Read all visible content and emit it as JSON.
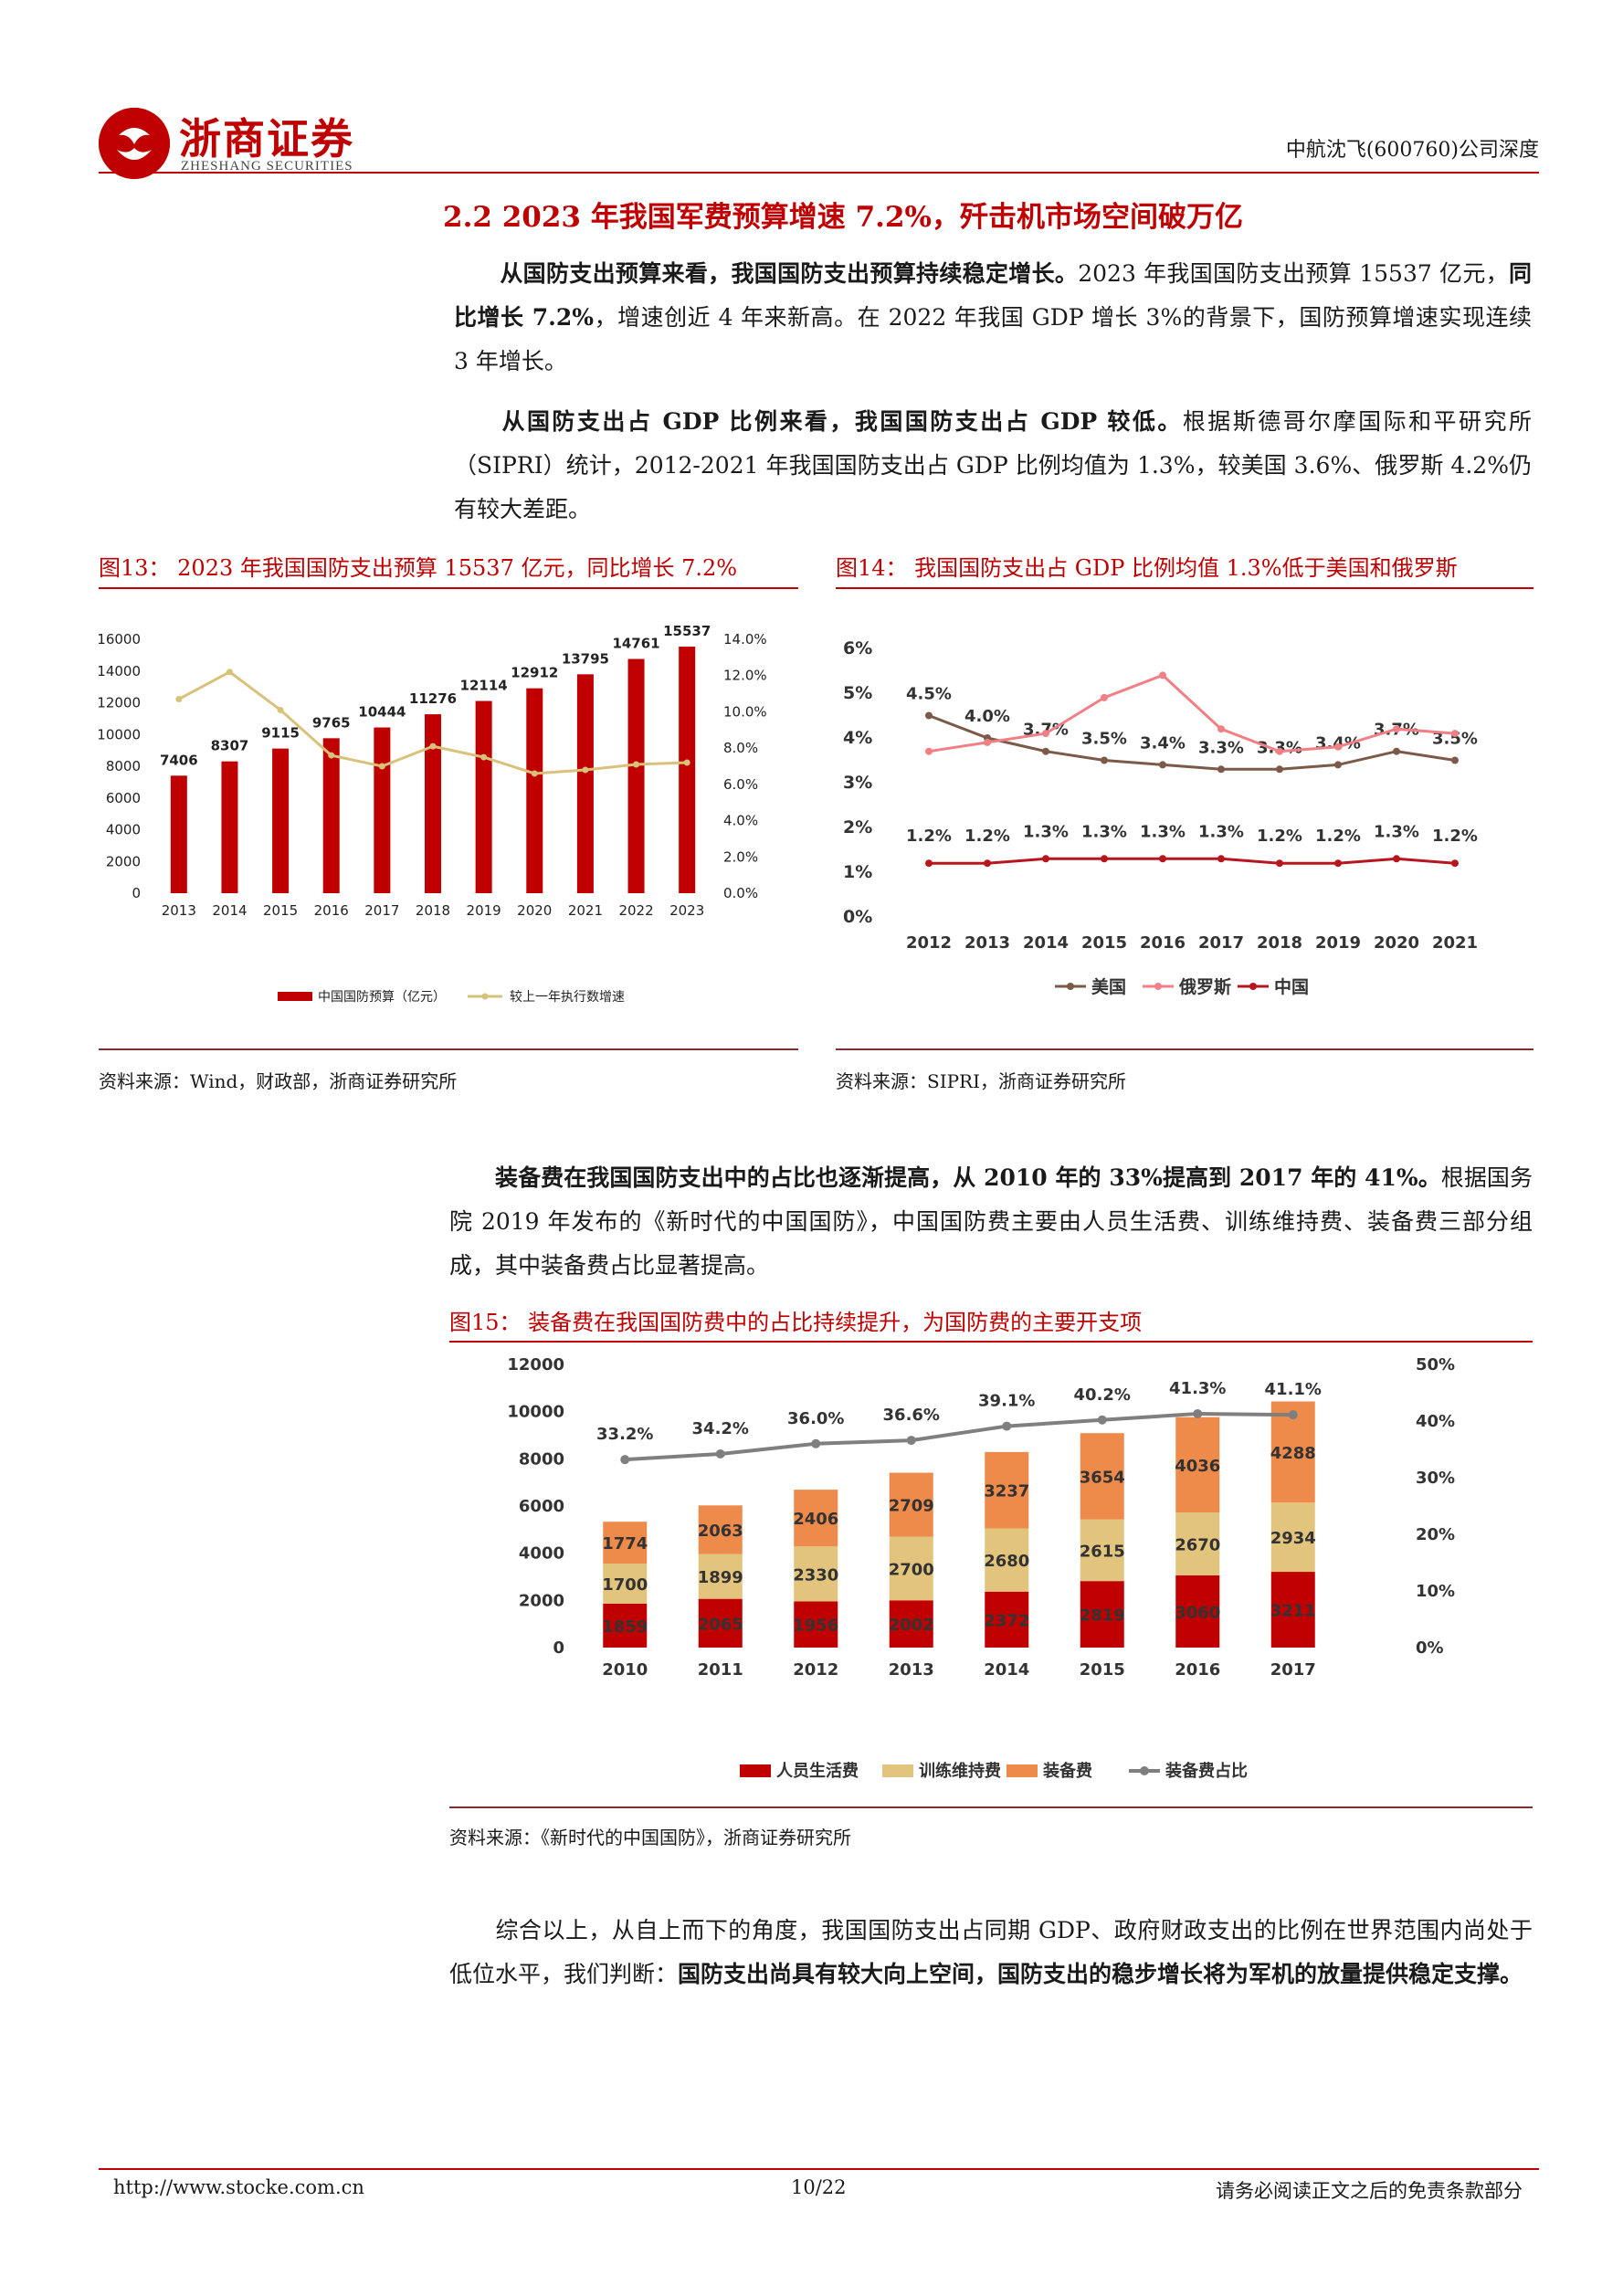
{
  "header": {
    "logo_cn": "浙商证券",
    "logo_en": "ZHESHANG SECURITIES",
    "right": "中航沈飞(600760)公司深度"
  },
  "section": {
    "title": "2.2 2023 年我国军费预算增速 7.2%，歼击机市场空间破万亿"
  },
  "paragraphs": {
    "p1_bold": "从国防支出预算来看，我国国防支出预算持续稳定增长。",
    "p1_a": "2023 年我国国防支出预算 15537 亿元，",
    "p1_bold2": "同比增长 7.2%",
    "p1_b": "，增速创近 4 年来新高。在 2022 年我国 GDP 增长 3%的背景下，国防预算增速实现连续 3 年增长。",
    "p2_bold": "从国防支出占 GDP 比例来看，我国国防支出占 GDP 较低。",
    "p2_a": "根据斯德哥尔摩国际和平研究所（SIPRI）统计，2012-2021 年我国国防支出占 GDP 比例均值为 1.3%，较美国 3.6%、俄罗斯 4.2%仍有较大差距。",
    "p3_bold": "装备费在我国国防支出中的占比也逐渐提高，从 2010 年的 33%提高到 2017 年的 41%。",
    "p3_a": "根据国务院 2019 年发布的《新时代的中国国防》，中国国防费主要由人员生活费、训练维持费、装备费三部分组成，其中装备费占比显著提高。",
    "p4_a": "综合以上，从自上而下的角度，我国国防支出占同期 GDP、政府财政支出的比例在世界范围内尚处于低位水平，我们判断：",
    "p4_bold": "国防支出尚具有较大向上空间，国防支出的稳步增长将为军机的放量提供稳定支撑。"
  },
  "figures": {
    "fig13_title": "图13：  2023 年我国国防支出预算 15537 亿元，同比增长 7.2%",
    "fig13_source": "资料来源：Wind，财政部，浙商证券研究所",
    "fig14_title": "图14：  我国国防支出占 GDP 比例均值 1.3%低于美国和俄罗斯",
    "fig14_source": "资料来源：SIPRI，浙商证券研究所",
    "fig15_title": "图15：  装备费在我国国防费中的占比持续提升，为国防费的主要开支项",
    "fig15_source": "资料来源：《新时代的中国国防》，浙商证券研究所"
  },
  "footer": {
    "url": "http://www.stocke.com.cn",
    "page": "10/22",
    "disclaimer": "请务必阅读正文之后的免责条款部分"
  },
  "colors": {
    "brand_red": "#c00000",
    "bar_red": "#c00000",
    "tan_line": "#d8c27a",
    "usa": "#7b5a4a",
    "russia": "#f07f86",
    "china": "#b8161f",
    "training": "#e3c47d",
    "equipment": "#ee8a4a",
    "ratio_line": "#7f7f7f"
  },
  "chart_data": [
    {
      "id": "fig13",
      "type": "bar",
      "categories": [
        "2013",
        "2014",
        "2015",
        "2016",
        "2017",
        "2018",
        "2019",
        "2020",
        "2021",
        "2022",
        "2023"
      ],
      "series": [
        {
          "name": "中国国防预算（亿元）",
          "type": "bar",
          "axis": "left",
          "values": [
            7406,
            8307,
            9115,
            9765,
            10444,
            11276,
            12114,
            12912,
            13795,
            14761,
            15537
          ]
        },
        {
          "name": "较上一年执行数增速",
          "type": "line",
          "axis": "right",
          "values": [
            10.7,
            12.2,
            10.1,
            7.6,
            7.0,
            8.1,
            7.5,
            6.6,
            6.8,
            7.1,
            7.2
          ]
        }
      ],
      "ylim_left": [
        0,
        16000
      ],
      "yticks_left": [
        "0",
        "2000",
        "4000",
        "6000",
        "8000",
        "10000",
        "12000",
        "14000",
        "16000"
      ],
      "ylim_right": [
        0,
        14
      ],
      "yticks_right": [
        "0.0%",
        "2.0%",
        "4.0%",
        "6.0%",
        "8.0%",
        "10.0%",
        "12.0%",
        "14.0%"
      ],
      "legend": "bottom"
    },
    {
      "id": "fig14",
      "type": "line",
      "categories": [
        "2012",
        "2013",
        "2014",
        "2015",
        "2016",
        "2017",
        "2018",
        "2019",
        "2020",
        "2021"
      ],
      "series": [
        {
          "name": "美国",
          "values": [
            4.5,
            4.0,
            3.7,
            3.5,
            3.4,
            3.3,
            3.3,
            3.4,
            3.7,
            3.5
          ],
          "labels": [
            "4.5%",
            "4.0%",
            "3.7%",
            "3.5%",
            "3.4%",
            "3.3%",
            "3.3%",
            "3.4%",
            "3.7%",
            "3.5%"
          ]
        },
        {
          "name": "俄罗斯",
          "values": [
            3.7,
            3.9,
            4.1,
            4.9,
            5.4,
            4.2,
            3.7,
            3.8,
            4.2,
            4.1
          ]
        },
        {
          "name": "中国",
          "values": [
            1.2,
            1.2,
            1.3,
            1.3,
            1.3,
            1.3,
            1.2,
            1.2,
            1.3,
            1.2
          ],
          "labels": [
            "1.2%",
            "1.2%",
            "1.3%",
            "1.3%",
            "1.3%",
            "1.3%",
            "1.2%",
            "1.2%",
            "1.3%",
            "1.2%"
          ]
        }
      ],
      "ylim": [
        0,
        6
      ],
      "yticks": [
        "0%",
        "1%",
        "2%",
        "3%",
        "4%",
        "5%",
        "6%"
      ],
      "legend": "bottom"
    },
    {
      "id": "fig15",
      "type": "bar",
      "stacked": true,
      "categories": [
        "2010",
        "2011",
        "2012",
        "2013",
        "2014",
        "2015",
        "2016",
        "2017"
      ],
      "series": [
        {
          "name": "人员生活费",
          "values": [
            1859,
            2065,
            1956,
            2002,
            2372,
            2819,
            3060,
            3211
          ]
        },
        {
          "name": "训练维持费",
          "values": [
            1700,
            1899,
            2330,
            2700,
            2680,
            2615,
            2670,
            2934
          ]
        },
        {
          "name": "装备费",
          "values": [
            1774,
            2063,
            2406,
            2709,
            3237,
            3654,
            4036,
            4288
          ]
        },
        {
          "name": "装备费占比",
          "type": "line",
          "axis": "right",
          "values": [
            33.2,
            34.2,
            36.0,
            36.6,
            39.1,
            40.2,
            41.3,
            41.1
          ],
          "labels": [
            "33.2%",
            "34.2%",
            "36.0%",
            "36.6%",
            "39.1%",
            "40.2%",
            "41.3%",
            "41.1%"
          ]
        }
      ],
      "ylim_left": [
        0,
        12000
      ],
      "yticks_left": [
        "0",
        "2000",
        "4000",
        "6000",
        "8000",
        "10000",
        "12000"
      ],
      "ylim_right": [
        0,
        50
      ],
      "yticks_right": [
        "0%",
        "10%",
        "20%",
        "30%",
        "40%",
        "50%"
      ],
      "legend": "bottom"
    }
  ]
}
